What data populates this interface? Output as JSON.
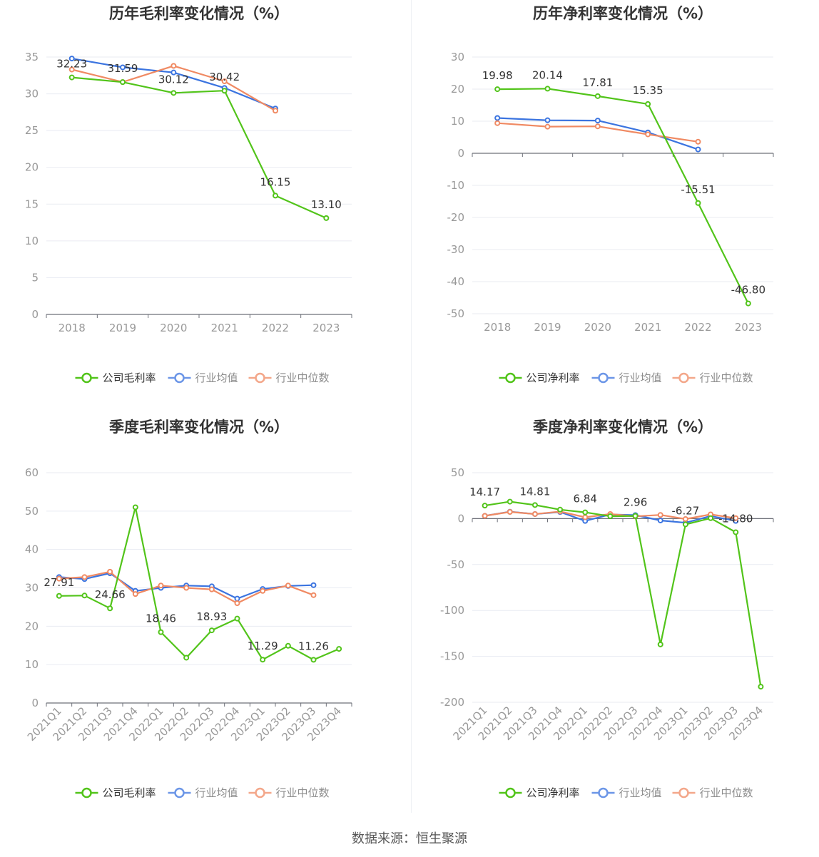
{
  "colors": {
    "company": "#52c41a",
    "avg": "#3b74e0",
    "median": "#f08a63",
    "grid": "#e9ebf2",
    "axis": "#6e7079",
    "tick": "#999999",
    "title": "#333333",
    "label": "#333333"
  },
  "footer": {
    "prefix": "数据来源：",
    "source": "恒生聚源"
  },
  "chart_data": [
    {
      "type": "line",
      "title": "历年毛利率变化情况（%）",
      "categories": [
        "2018",
        "2019",
        "2020",
        "2021",
        "2022",
        "2023"
      ],
      "ylim": [
        0,
        35
      ],
      "yticks": [
        0,
        5,
        10,
        15,
        20,
        25,
        30,
        35
      ],
      "grid": true,
      "legend_position": "bottom",
      "series": [
        {
          "name": "公司毛利率",
          "key": "company",
          "values": [
            32.23,
            31.59,
            30.12,
            30.42,
            16.15,
            13.1
          ],
          "labels": [
            "32.23",
            "31.59",
            "30.12",
            "30.42",
            "16.15",
            "13.10"
          ]
        },
        {
          "name": "行业均值",
          "key": "avg",
          "values": [
            34.8,
            33.6,
            32.9,
            30.8,
            28.0,
            null
          ]
        },
        {
          "name": "行业中位数",
          "key": "median",
          "values": [
            33.3,
            31.6,
            33.8,
            31.7,
            27.7,
            null
          ]
        }
      ]
    },
    {
      "type": "line",
      "title": "历年净利率变化情况（%）",
      "categories": [
        "2018",
        "2019",
        "2020",
        "2021",
        "2022",
        "2023"
      ],
      "ylim": [
        -50,
        30
      ],
      "yticks": [
        -50,
        -40,
        -30,
        -20,
        -10,
        0,
        10,
        20,
        30
      ],
      "grid": true,
      "legend_position": "bottom",
      "series": [
        {
          "name": "公司净利率",
          "key": "company",
          "values": [
            19.98,
            20.14,
            17.81,
            15.35,
            -15.51,
            -46.8
          ],
          "labels": [
            "19.98",
            "20.14",
            "17.81",
            "15.35",
            "-15.51",
            "-46.80"
          ]
        },
        {
          "name": "行业均值",
          "key": "avg",
          "values": [
            11.0,
            10.3,
            10.2,
            6.5,
            1.2,
            null
          ]
        },
        {
          "name": "行业中位数",
          "key": "median",
          "values": [
            9.4,
            8.3,
            8.4,
            5.9,
            3.6,
            null
          ]
        }
      ]
    },
    {
      "type": "line",
      "title": "季度毛利率变化情况（%）",
      "categories": [
        "2021Q1",
        "2021Q2",
        "2021Q3",
        "2021Q4",
        "2022Q1",
        "2022Q2",
        "2022Q3",
        "2022Q4",
        "2023Q1",
        "2023Q2",
        "2023Q3",
        "2023Q4"
      ],
      "ylim": [
        0,
        60
      ],
      "yticks": [
        0,
        10,
        20,
        30,
        40,
        50,
        60
      ],
      "grid": true,
      "legend_position": "bottom",
      "series": [
        {
          "name": "公司毛利率",
          "key": "company",
          "values": [
            27.91,
            28.0,
            24.66,
            51.0,
            18.46,
            11.8,
            18.93,
            22.0,
            11.29,
            14.9,
            11.26,
            14.1
          ],
          "labels": [
            "27.91",
            "",
            "24.66",
            "",
            "18.46",
            "",
            "18.93",
            "",
            "11.29",
            "",
            "11.26",
            ""
          ]
        },
        {
          "name": "行业均值",
          "key": "avg",
          "values": [
            32.8,
            32.3,
            33.8,
            29.2,
            30.0,
            30.6,
            30.4,
            27.2,
            29.7,
            30.5,
            30.7,
            null
          ]
        },
        {
          "name": "行业中位数",
          "key": "median",
          "values": [
            32.4,
            32.8,
            34.2,
            28.4,
            30.6,
            30.0,
            29.6,
            26.0,
            29.2,
            30.6,
            28.1,
            null
          ]
        }
      ]
    },
    {
      "type": "line",
      "title": "季度净利率变化情况（%）",
      "categories": [
        "2021Q1",
        "2021Q2",
        "2021Q3",
        "2021Q4",
        "2022Q1",
        "2022Q2",
        "2022Q3",
        "2022Q4",
        "2023Q1",
        "2023Q2",
        "2023Q3",
        "2023Q4"
      ],
      "ylim": [
        -200,
        50
      ],
      "yticks": [
        -200,
        -150,
        -100,
        -50,
        0,
        50
      ],
      "grid": true,
      "legend_position": "bottom",
      "series": [
        {
          "name": "公司净利率",
          "key": "company",
          "values": [
            14.17,
            18.5,
            14.81,
            9.8,
            6.84,
            2.6,
            2.96,
            -137.0,
            -6.27,
            0.5,
            -14.8,
            -183.0
          ],
          "labels": [
            "14.17",
            "",
            "14.81",
            "",
            "6.84",
            "",
            "2.96",
            "",
            "-6.27",
            "",
            "-14.80",
            ""
          ]
        },
        {
          "name": "行业均值",
          "key": "avg",
          "values": [
            3.0,
            7.5,
            5.0,
            7.2,
            -2.5,
            4.5,
            3.8,
            -2.0,
            -4.5,
            2.8,
            -2.5,
            null
          ]
        },
        {
          "name": "行业中位数",
          "key": "median",
          "values": [
            3.0,
            7.3,
            5.0,
            7.7,
            1.5,
            5.0,
            2.5,
            4.0,
            -0.5,
            4.6,
            0.5,
            null
          ]
        }
      ]
    }
  ]
}
